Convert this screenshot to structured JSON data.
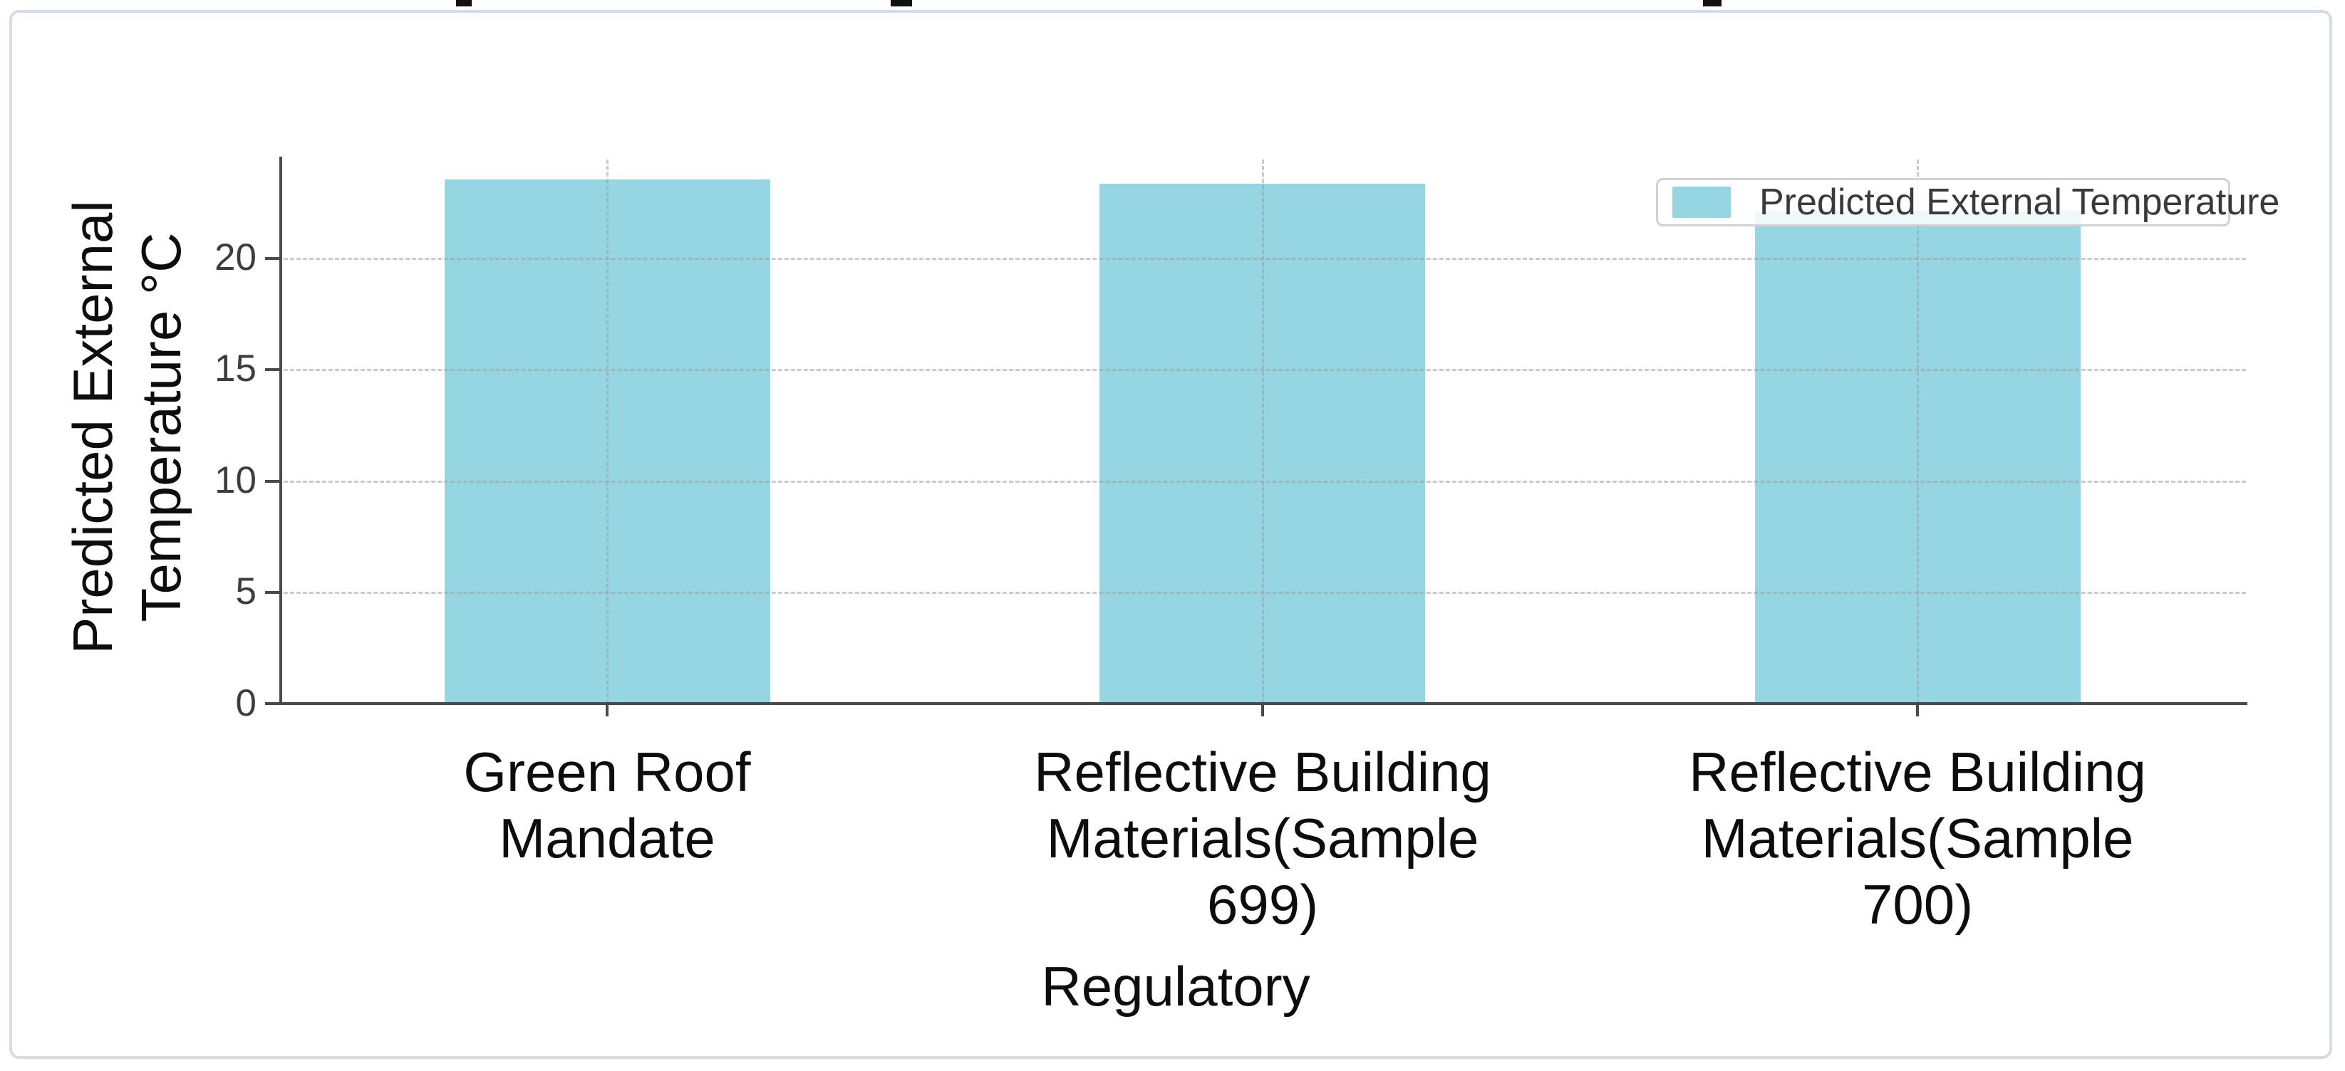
{
  "page": {
    "background_color": "#ffffff",
    "card_border_color": "#d5dce4",
    "top_fragment_color": "#111111"
  },
  "chart_data": {
    "type": "bar",
    "title": "",
    "categories": [
      "Green Roof Mandate",
      "Reflective Building Materials(Sample 699)",
      "Reflective Building Materials(Sample 700)"
    ],
    "values": [
      23.5,
      23.3,
      22.1
    ],
    "series": [
      {
        "name": "Predicted External Temperature",
        "values": [
          23.5,
          23.3,
          22.1
        ]
      }
    ],
    "xlabel": "Regulatory",
    "ylabel": "Predicted External Temperature °C",
    "ylabel_lines": [
      "Predicted External",
      "Temperature °C"
    ],
    "xtick_lines": [
      [
        "Green Roof",
        "Mandate"
      ],
      [
        "Reflective Building",
        "Materials(Sample",
        "699)"
      ],
      [
        "Reflective Building",
        "Materials(Sample",
        "700)"
      ]
    ],
    "ytick_labels": [
      "20",
      "15",
      "10",
      "5",
      "0"
    ],
    "ytick_values": [
      20,
      15,
      10,
      5,
      0
    ],
    "ylim": [
      0,
      24.5
    ],
    "grid": true,
    "grid_style": "dashed",
    "legend": {
      "label": "Predicted External Temperature",
      "position": "upper right"
    },
    "bar_color": "#96d6e3",
    "axis_color": "#4a4a4a",
    "tick_label_color": "#3d3d3d",
    "text_color": "#0d0d0d"
  }
}
